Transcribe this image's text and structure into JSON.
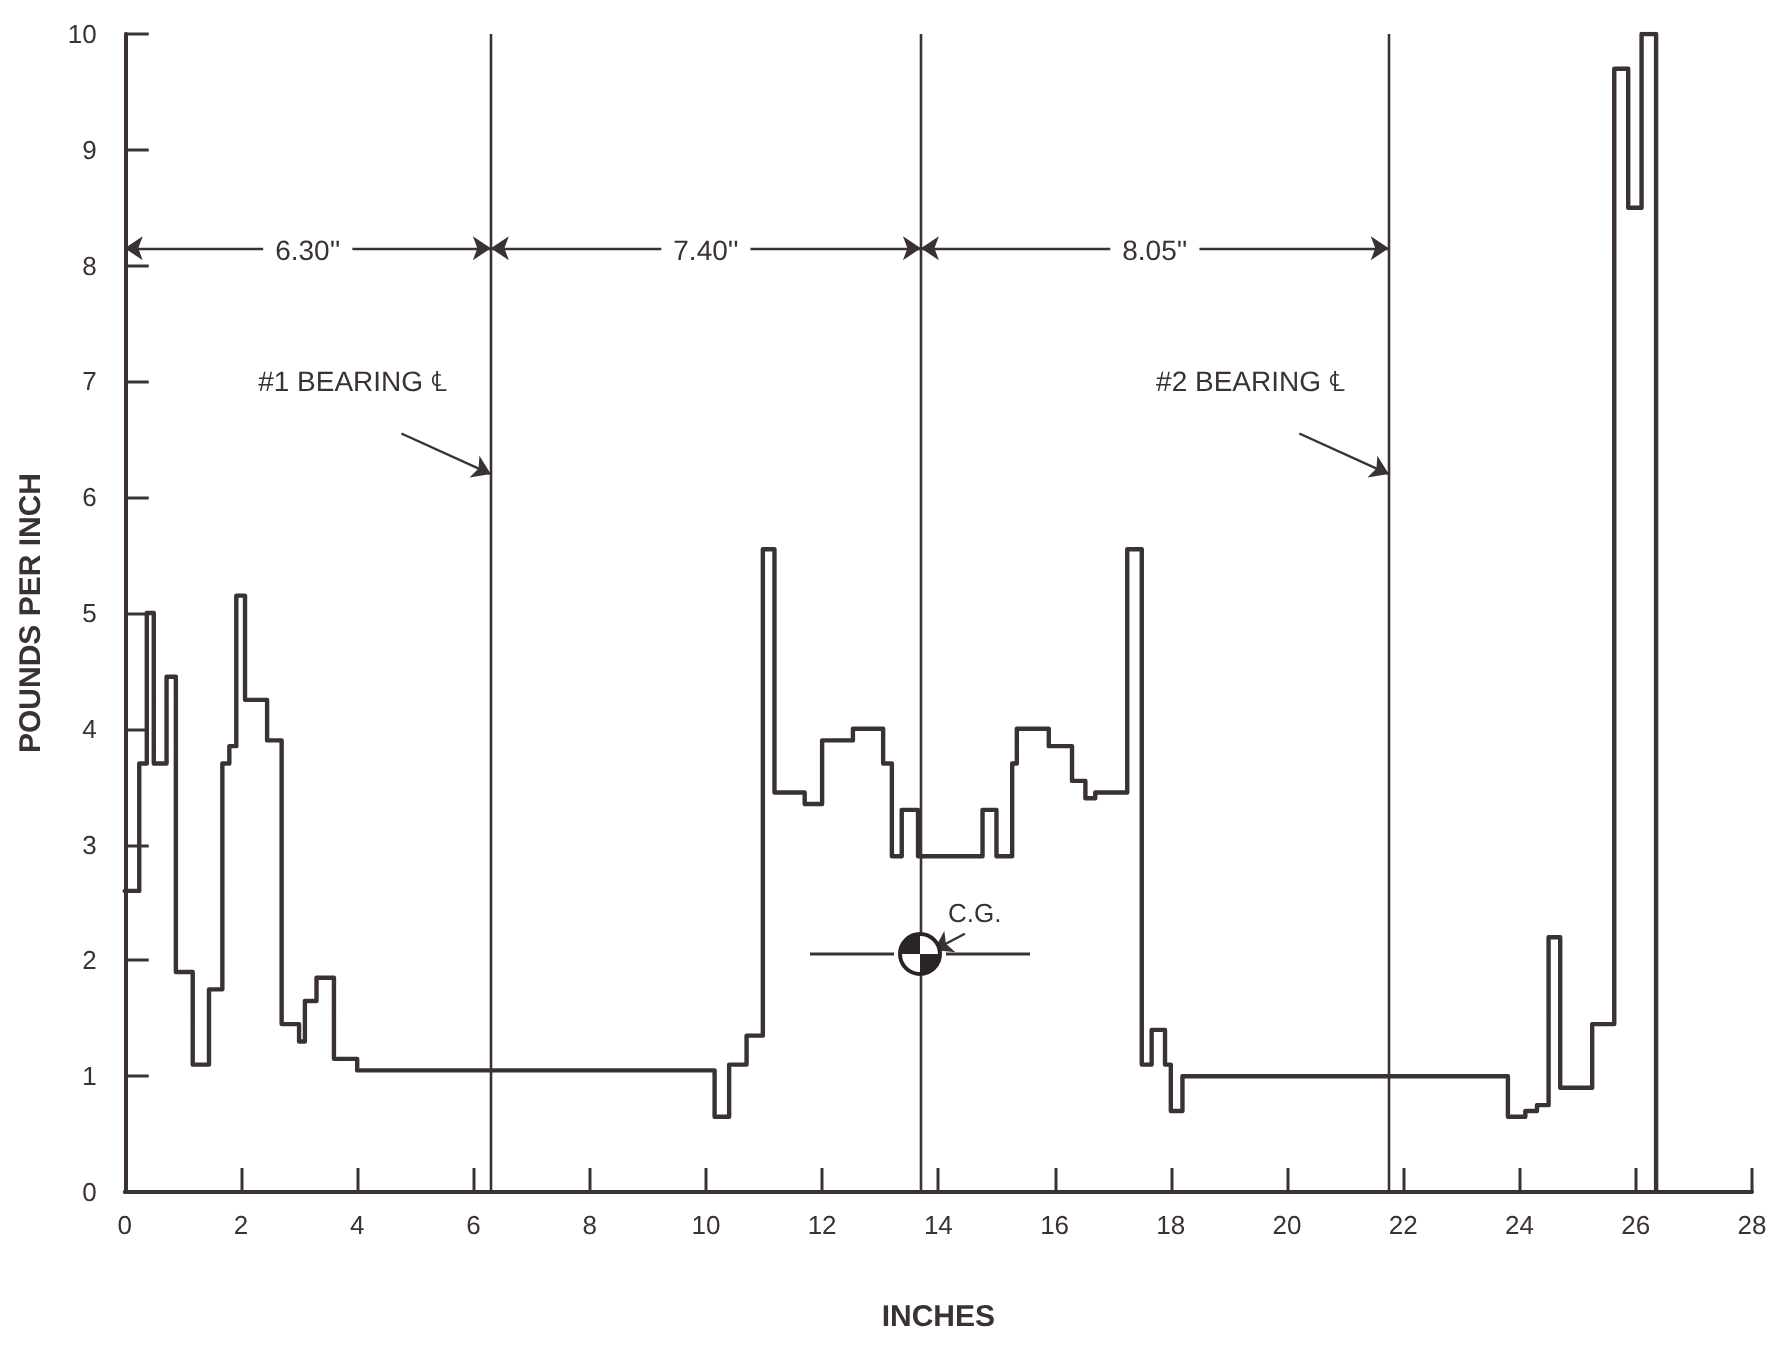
{
  "chart_data": {
    "type": "step",
    "xlabel": "INCHES",
    "ylabel": "POUNDS PER INCH",
    "color": "#3a3232",
    "x": [
      0,
      0.25,
      0.38,
      0.5,
      0.72,
      0.88,
      1.17,
      1.45,
      1.68,
      1.8,
      1.92,
      2.07,
      2.45,
      2.7,
      3.0,
      3.1,
      3.3,
      3.6,
      4.0,
      10.15,
      10.4,
      10.7,
      10.98,
      11.18,
      11.7,
      12.0,
      12.53,
      13.05,
      13.2,
      13.37,
      13.65,
      14.76,
      15.0,
      15.27,
      15.35,
      15.9,
      16.3,
      16.53,
      16.7,
      17.25,
      17.5,
      17.67,
      17.9,
      18.0,
      18.2,
      23.8,
      24.1,
      24.3,
      24.5,
      24.7,
      25.25,
      25.63,
      25.87,
      26.1,
      26.35
    ],
    "values": [
      2.6,
      3.7,
      5.0,
      3.7,
      4.45,
      1.9,
      1.1,
      1.75,
      3.7,
      3.85,
      5.15,
      4.25,
      3.9,
      1.45,
      1.3,
      1.65,
      1.85,
      1.15,
      1.05,
      0.65,
      1.1,
      1.35,
      5.55,
      3.45,
      3.35,
      3.9,
      4.0,
      3.7,
      2.9,
      3.3,
      2.9,
      3.3,
      2.9,
      3.7,
      4.0,
      3.85,
      3.55,
      3.4,
      3.45,
      5.55,
      1.1,
      1.4,
      1.1,
      0.7,
      1.0,
      0.65,
      0.7,
      0.75,
      2.2,
      0.9,
      1.45,
      9.7,
      8.5,
      10.0,
      0
    ],
    "xlim": [
      0,
      28
    ],
    "xticks": [
      0,
      2,
      4,
      6,
      8,
      10,
      12,
      14,
      16,
      18,
      20,
      22,
      24,
      26,
      28
    ],
    "ylim": [
      0,
      10
    ],
    "yticks": [
      0,
      1,
      2,
      3,
      4,
      5,
      6,
      7,
      8,
      9,
      10
    ],
    "grid": false,
    "marker": "none",
    "line_style": "solid",
    "ref_lines": [
      {
        "axis": "x",
        "value": 6.3,
        "label": "#1 BEARING ℄"
      },
      {
        "axis": "x",
        "value": 13.7
      },
      {
        "axis": "x",
        "value": 21.75,
        "label": "#2 BEARING ℄"
      }
    ],
    "annotations": [
      "6.30''",
      "7.40''",
      "8.05''",
      {
        "text": "C.G.",
        "x": 13.7,
        "y": 2.05
      }
    ]
  }
}
